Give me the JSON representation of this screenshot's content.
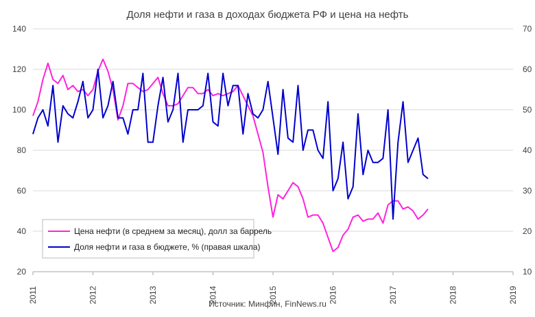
{
  "chart_data": {
    "type": "line",
    "title": "Доля нефти и газа в доходах бюджета РФ и цена на нефть",
    "source": "Источник: Минфин, FinNews.ru",
    "x_axis": {
      "type": "date",
      "min": "2011-01",
      "max": "2019-01",
      "tick_labels": [
        "2011",
        "2012",
        "2013",
        "2014",
        "2015",
        "2016",
        "2017",
        "2018",
        "2019"
      ]
    },
    "y_left": {
      "min": 20,
      "max": 140,
      "ticks": [
        20,
        40,
        60,
        80,
        100,
        120,
        140
      ]
    },
    "y_right": {
      "min": 10,
      "max": 70,
      "ticks": [
        10,
        20,
        30,
        40,
        50,
        60,
        70
      ]
    },
    "grid": {
      "horizontal": true,
      "vertical": false
    },
    "legend": {
      "position": "bottom-left"
    },
    "series": [
      {
        "name": "Цена нефти (в среднем за месяц), долл за баррель",
        "axis": "left",
        "color": "#ff22dd",
        "x": [
          "2011-01",
          "2011-02",
          "2011-03",
          "2011-04",
          "2011-05",
          "2011-06",
          "2011-07",
          "2011-08",
          "2011-09",
          "2011-10",
          "2011-11",
          "2011-12",
          "2012-01",
          "2012-02",
          "2012-03",
          "2012-04",
          "2012-05",
          "2012-06",
          "2012-07",
          "2012-08",
          "2012-09",
          "2012-10",
          "2012-11",
          "2012-12",
          "2013-01",
          "2013-02",
          "2013-03",
          "2013-04",
          "2013-05",
          "2013-06",
          "2013-07",
          "2013-08",
          "2013-09",
          "2013-10",
          "2013-11",
          "2013-12",
          "2014-01",
          "2014-02",
          "2014-03",
          "2014-04",
          "2014-05",
          "2014-06",
          "2014-07",
          "2014-08",
          "2014-09",
          "2014-10",
          "2014-11",
          "2014-12",
          "2015-01",
          "2015-02",
          "2015-03",
          "2015-04",
          "2015-05",
          "2015-06",
          "2015-07",
          "2015-08",
          "2015-09",
          "2015-10",
          "2015-11",
          "2015-12",
          "2016-01",
          "2016-02",
          "2016-03",
          "2016-04",
          "2016-05",
          "2016-06",
          "2016-07",
          "2016-08",
          "2016-09",
          "2016-10",
          "2016-11",
          "2016-12",
          "2017-01",
          "2017-02",
          "2017-03",
          "2017-04",
          "2017-05",
          "2017-06",
          "2017-07",
          "2017-08"
        ],
        "values": [
          97,
          104,
          115,
          123,
          115,
          113,
          117,
          110,
          112,
          109,
          110,
          107,
          110,
          119,
          125,
          119,
          110,
          95,
          102,
          113,
          113,
          111,
          109,
          110,
          113,
          116,
          108,
          102,
          102,
          103,
          107,
          111,
          111,
          108,
          108,
          110,
          107,
          108,
          107,
          108,
          109,
          112,
          107,
          102,
          97,
          88,
          79,
          62,
          47,
          58,
          56,
          60,
          64,
          62,
          56,
          47,
          48,
          48,
          44,
          37,
          30,
          32,
          38,
          41,
          47,
          48,
          45,
          46,
          46,
          49,
          44,
          53,
          55,
          55,
          51,
          52,
          50,
          46,
          48,
          51
        ]
      },
      {
        "name": "Доля нефти и газа в бюджете, % (правая шкала)",
        "axis": "right",
        "color": "#0000cc",
        "x": [
          "2011-01",
          "2011-02",
          "2011-03",
          "2011-04",
          "2011-05",
          "2011-06",
          "2011-07",
          "2011-08",
          "2011-09",
          "2011-10",
          "2011-11",
          "2011-12",
          "2012-01",
          "2012-02",
          "2012-03",
          "2012-04",
          "2012-05",
          "2012-06",
          "2012-07",
          "2012-08",
          "2012-09",
          "2012-10",
          "2012-11",
          "2012-12",
          "2013-01",
          "2013-02",
          "2013-03",
          "2013-04",
          "2013-05",
          "2013-06",
          "2013-07",
          "2013-08",
          "2013-09",
          "2013-10",
          "2013-11",
          "2013-12",
          "2014-01",
          "2014-02",
          "2014-03",
          "2014-04",
          "2014-05",
          "2014-06",
          "2014-07",
          "2014-08",
          "2014-09",
          "2014-10",
          "2014-11",
          "2014-12",
          "2015-01",
          "2015-02",
          "2015-03",
          "2015-04",
          "2015-05",
          "2015-06",
          "2015-07",
          "2015-08",
          "2015-09",
          "2015-10",
          "2015-11",
          "2015-12",
          "2016-01",
          "2016-02",
          "2016-03",
          "2016-04",
          "2016-05",
          "2016-06",
          "2016-07",
          "2016-08",
          "2016-09",
          "2016-10",
          "2016-11",
          "2016-12",
          "2017-01",
          "2017-02",
          "2017-03",
          "2017-04",
          "2017-05",
          "2017-06",
          "2017-07",
          "2017-08"
        ],
        "values": [
          44,
          48,
          50,
          46,
          56,
          42,
          51,
          49,
          48,
          52,
          57,
          48,
          50,
          60,
          48,
          51,
          57,
          48,
          48,
          44,
          50,
          50,
          59,
          42,
          42,
          51,
          58,
          47,
          50,
          59,
          42,
          50,
          50,
          50,
          51,
          59,
          47,
          46,
          59,
          51,
          56,
          56,
          44,
          54,
          49,
          48,
          50,
          57,
          48,
          39,
          55,
          43,
          42,
          56,
          40,
          45,
          45,
          40,
          38,
          52,
          30,
          33,
          42,
          28,
          31,
          49,
          34,
          40,
          37,
          37,
          38,
          50,
          23,
          42,
          52,
          37,
          40,
          43,
          34,
          33
        ]
      }
    ]
  }
}
